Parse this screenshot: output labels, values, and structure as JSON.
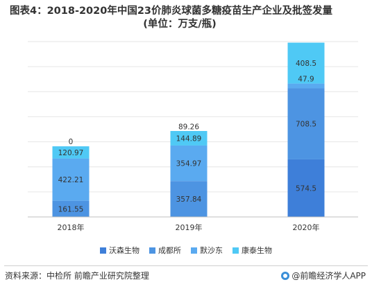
{
  "title": {
    "line1": "图表4：2018-2020年中国23价肺炎球菌多糖疫苗生产企业及批签发量",
    "line2": "(单位：万支/瓶)"
  },
  "source": "资料来源：中检所 前瞻产业研究院整理",
  "brand": "@前瞻经济学人APP",
  "colors": {
    "沃森生物": "#3e7fd9",
    "成都所": "#4d94e2",
    "默沙东": "#5aaaf0",
    "康泰生物": "#4fc9f5",
    "grid": "#e6e6e6",
    "axis": "#bfbfbf"
  },
  "chart_data": {
    "type": "bar",
    "stacked": true,
    "categories": [
      "2018年",
      "2019年",
      "2020年"
    ],
    "series": [
      {
        "name": "沃森生物",
        "values": [
          0,
          0,
          574.5
        ],
        "labels": [
          "",
          "",
          "574.5"
        ]
      },
      {
        "name": "成都所",
        "values": [
          161.55,
          357.84,
          708.5
        ],
        "labels": [
          "161.55",
          "357.84",
          "708.5"
        ]
      },
      {
        "name": "默沙东",
        "values": [
          422.21,
          354.97,
          47.9
        ],
        "labels": [
          "422.21",
          "354.97",
          "47.9"
        ]
      },
      {
        "name": "康泰生物",
        "values": [
          120.97,
          144.89,
          408.5
        ],
        "labels": [
          "120.97",
          "144.89",
          "408.5"
        ]
      },
      {
        "name": "_top",
        "values": [
          0,
          89.26,
          0
        ],
        "labels": [
          "0",
          "89.26",
          ""
        ]
      }
    ],
    "title": "图表4：2018-2020年中国23价肺炎球菌多糖疫苗生产企业及批签发量(单位：万支/瓶)",
    "xlabel": "",
    "ylabel": "",
    "ylim": [
      0,
      1750
    ],
    "grid": true,
    "legend_position": "bottom"
  }
}
